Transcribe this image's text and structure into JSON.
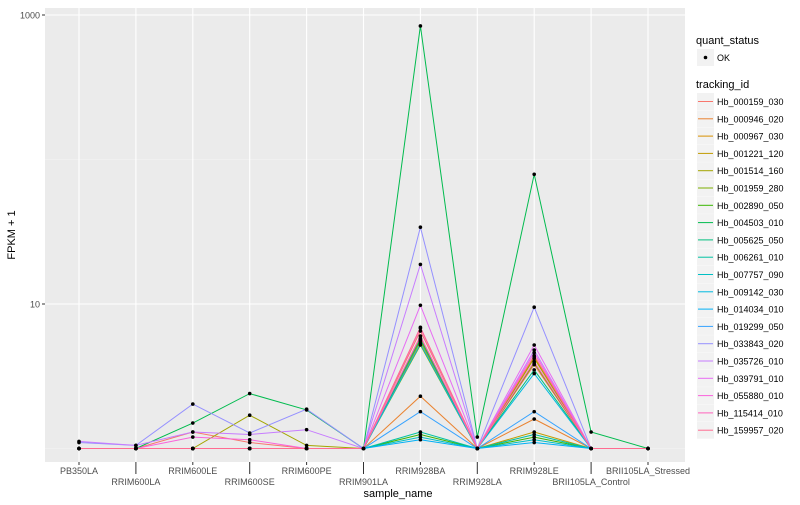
{
  "chart_data": {
    "type": "line",
    "xlabel": "sample_name",
    "ylabel": "FPKM + 1",
    "yscale": "log10",
    "ylim": [
      0.9,
      1200
    ],
    "yticks": [
      10,
      1000
    ],
    "grid": true,
    "legend_position": "right",
    "categories": [
      "PB350LA",
      "RRIM600LA",
      "RRIM600LE",
      "RRIM600SE",
      "RRIM600PE",
      "RRIM901LA",
      "RRIM928BA",
      "RRIM928LA",
      "RRIM928LE",
      "BRII105LA_Control",
      "BRII105LA_Stressed"
    ],
    "legend_shape": {
      "title": "quant_status",
      "items": [
        "OK"
      ]
    },
    "legend_color_title": "tracking_id",
    "series": [
      {
        "name": "Hb_000159_030",
        "color": "#F8766D",
        "values": [
          1,
          1,
          1.3,
          1.1,
          1,
          1,
          6.5,
          1,
          3.8,
          1,
          1
        ]
      },
      {
        "name": "Hb_000946_020",
        "color": "#EA8331",
        "values": [
          1,
          1,
          1,
          1,
          1,
          1,
          2.3,
          1,
          1.6,
          1,
          1
        ]
      },
      {
        "name": "Hb_000967_030",
        "color": "#D89000",
        "values": [
          1,
          1,
          1,
          1,
          1,
          1,
          5.8,
          1,
          4.3,
          1,
          1
        ]
      },
      {
        "name": "Hb_001221_120",
        "color": "#C09B00",
        "values": [
          1,
          1,
          1,
          1,
          1,
          1,
          5.5,
          1,
          1.3,
          1,
          1
        ]
      },
      {
        "name": "Hb_001514_160",
        "color": "#A3A500",
        "values": [
          1,
          1,
          1,
          1.7,
          1.05,
          1,
          5.6,
          1,
          4.2,
          1,
          1
        ]
      },
      {
        "name": "Hb_001959_280",
        "color": "#7CAE00",
        "values": [
          1,
          1,
          1,
          1,
          1,
          1,
          5.2,
          1,
          3.9,
          1,
          1
        ]
      },
      {
        "name": "Hb_002890_050",
        "color": "#39B600",
        "values": [
          1,
          1,
          1,
          1,
          1,
          1,
          1.25,
          1,
          1.2,
          1,
          1
        ]
      },
      {
        "name": "Hb_004503_010",
        "color": "#00BB4E",
        "values": [
          1,
          1,
          1.5,
          2.4,
          1.85,
          1,
          840,
          1.2,
          79,
          1.3,
          1
        ]
      },
      {
        "name": "Hb_005625_050",
        "color": "#00BF7D",
        "values": [
          1,
          1,
          1,
          1,
          1,
          1,
          5.7,
          1,
          3.5,
          1,
          1
        ]
      },
      {
        "name": "Hb_006261_010",
        "color": "#00C1A3",
        "values": [
          1,
          1,
          1,
          1,
          1,
          1,
          1.3,
          1,
          1.25,
          1,
          1
        ]
      },
      {
        "name": "Hb_007757_090",
        "color": "#00BFC4",
        "values": [
          1,
          1,
          1,
          1,
          1,
          1,
          1.2,
          1,
          1.15,
          1,
          1
        ]
      },
      {
        "name": "Hb_009142_030",
        "color": "#00BAE0",
        "values": [
          1,
          1,
          1,
          1,
          1,
          1,
          5.3,
          1,
          3.3,
          1,
          1
        ]
      },
      {
        "name": "Hb_014034_010",
        "color": "#00B0F6",
        "values": [
          1,
          1,
          1,
          1,
          1,
          1,
          1.15,
          1,
          1.1,
          1,
          1
        ]
      },
      {
        "name": "Hb_019299_050",
        "color": "#35A2FF",
        "values": [
          1,
          1,
          1,
          1,
          1,
          1,
          1.8,
          1,
          1.8,
          1,
          1
        ]
      },
      {
        "name": "Hb_033843_020",
        "color": "#9590FF",
        "values": [
          1.1,
          1.05,
          2.03,
          1.28,
          1.87,
          1,
          34,
          1,
          9.5,
          1,
          1
        ]
      },
      {
        "name": "Hb_035726_010",
        "color": "#C77CFF",
        "values": [
          1.12,
          1.05,
          1.3,
          1.25,
          1.35,
          1,
          18.8,
          1,
          4.8,
          1,
          1
        ]
      },
      {
        "name": "Hb_039791_010",
        "color": "#E76BF3",
        "values": [
          1,
          1,
          1,
          1,
          1,
          1,
          9.8,
          1,
          5.2,
          1,
          1
        ]
      },
      {
        "name": "Hb_055880_010",
        "color": "#FA62DB",
        "values": [
          1,
          1,
          1.2,
          1.15,
          1,
          1,
          6.8,
          1,
          4.6,
          1,
          1
        ]
      },
      {
        "name": "Hb_115414_010",
        "color": "#FF62BC",
        "values": [
          1,
          1,
          1,
          1,
          1,
          1,
          6.0,
          1,
          4.0,
          1,
          1
        ]
      },
      {
        "name": "Hb_159957_020",
        "color": "#FF6C91",
        "values": [
          1,
          1,
          1,
          1,
          1,
          1,
          6.9,
          1,
          4.4,
          1,
          1
        ]
      }
    ]
  }
}
